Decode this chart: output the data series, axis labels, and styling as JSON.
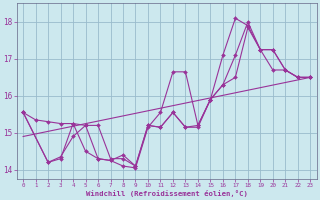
{
  "xlabel": "Windchill (Refroidissement éolien,°C)",
  "xlim": [
    -0.5,
    23.5
  ],
  "ylim": [
    13.75,
    18.5
  ],
  "yticks": [
    14,
    15,
    16,
    17,
    18
  ],
  "xticks": [
    0,
    1,
    2,
    3,
    4,
    5,
    6,
    7,
    8,
    9,
    10,
    11,
    12,
    13,
    14,
    15,
    16,
    17,
    18,
    19,
    20,
    21,
    22,
    23
  ],
  "bg_color": "#cce8ee",
  "grid_color": "#99bbcc",
  "line_color": "#993399",
  "lines": [
    {
      "x": [
        0,
        1,
        2,
        3,
        4,
        5,
        6,
        7,
        8,
        9,
        10,
        11,
        12,
        13,
        14,
        15,
        16,
        17,
        18,
        19,
        20,
        21,
        22,
        23
      ],
      "y": [
        15.55,
        15.35,
        15.3,
        15.25,
        15.25,
        15.2,
        15.2,
        14.3,
        14.3,
        14.1,
        15.2,
        15.15,
        15.55,
        15.15,
        15.2,
        15.9,
        17.1,
        18.1,
        17.9,
        17.25,
        16.7,
        16.7,
        16.5,
        16.5
      ],
      "markers": true
    },
    {
      "x": [
        0,
        2,
        3,
        4,
        5,
        6,
        7,
        8,
        9,
        10,
        11,
        12,
        13,
        14,
        15,
        16,
        17,
        18,
        19,
        20,
        21,
        22,
        23
      ],
      "y": [
        15.55,
        14.2,
        14.3,
        15.25,
        14.5,
        14.3,
        14.25,
        14.1,
        14.05,
        15.15,
        15.55,
        16.65,
        16.65,
        15.2,
        15.9,
        16.3,
        17.1,
        18.0,
        17.25,
        17.25,
        16.7,
        16.5,
        16.5
      ],
      "markers": true
    },
    {
      "x": [
        0,
        2,
        3,
        4,
        5,
        6,
        7,
        8,
        9,
        10,
        11,
        12,
        13,
        14,
        15,
        16,
        17,
        18,
        19,
        20,
        21,
        22,
        23
      ],
      "y": [
        15.55,
        14.2,
        14.35,
        14.9,
        15.2,
        14.3,
        14.25,
        14.4,
        14.1,
        15.2,
        15.15,
        15.55,
        15.15,
        15.15,
        15.9,
        16.3,
        16.5,
        17.85,
        17.25,
        17.25,
        16.7,
        16.5,
        16.5
      ],
      "markers": true
    },
    {
      "x": [
        0,
        23
      ],
      "y": [
        14.9,
        16.5
      ],
      "markers": false
    }
  ]
}
